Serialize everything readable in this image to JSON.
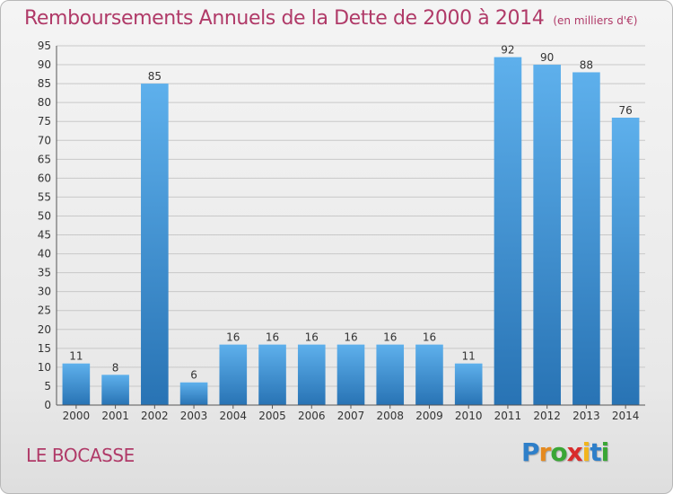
{
  "header": {
    "title": "Remboursements Annuels de la Dette de 2000 à 2014",
    "unit": "(en milliers d'€)"
  },
  "footer": {
    "commune": "LE BOCASSE",
    "logo": {
      "letters": [
        "P",
        "r",
        "o",
        "x",
        "i",
        "t",
        "i"
      ],
      "colors": [
        "#2e7fc9",
        "#e58a1f",
        "#3aa635",
        "#d92c2c",
        "#f2b51c",
        "#2e7fc9",
        "#3aa635"
      ]
    }
  },
  "colors": {
    "bar_light": "#5eb0ec",
    "bar_dark": "#2873b4",
    "grid": "#c8c8c8",
    "axis": "#555555",
    "title": "#b03a68"
  },
  "chart_data": {
    "type": "bar",
    "title": "Remboursements Annuels de la Dette de 2000 à 2014",
    "subtitle": "(en milliers d'€)",
    "categories": [
      "2000",
      "2001",
      "2002",
      "2003",
      "2004",
      "2005",
      "2006",
      "2007",
      "2008",
      "2009",
      "2010",
      "2011",
      "2012",
      "2013",
      "2014"
    ],
    "values": [
      11,
      8,
      85,
      6,
      16,
      16,
      16,
      16,
      16,
      16,
      11,
      92,
      90,
      88,
      76
    ],
    "ylim": [
      0,
      95
    ],
    "yticks": [
      0,
      5,
      10,
      15,
      20,
      25,
      30,
      35,
      40,
      45,
      50,
      55,
      60,
      65,
      70,
      75,
      80,
      85,
      90,
      95
    ],
    "grid": true,
    "legend": "none"
  }
}
